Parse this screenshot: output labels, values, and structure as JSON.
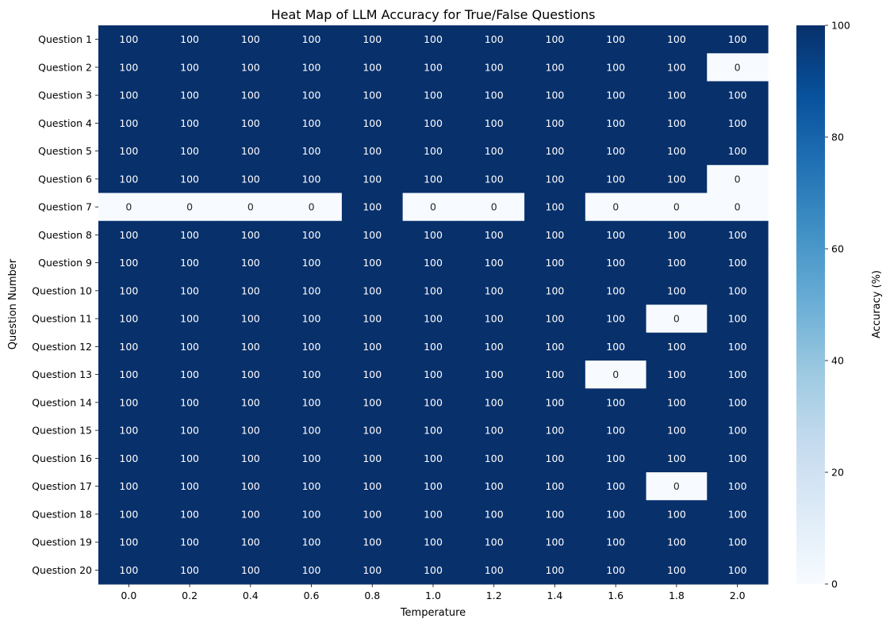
{
  "chart_data": {
    "type": "heatmap",
    "title": "Heat Map of LLM Accuracy for True/False Questions",
    "xlabel": "Temperature",
    "ylabel": "Question Number",
    "x": [
      "0.0",
      "0.2",
      "0.4",
      "0.6",
      "0.8",
      "1.0",
      "1.2",
      "1.4",
      "1.6",
      "1.8",
      "2.0"
    ],
    "y": [
      "Question 1",
      "Question 2",
      "Question 3",
      "Question 4",
      "Question 5",
      "Question 6",
      "Question 7",
      "Question 8",
      "Question 9",
      "Question 10",
      "Question 11",
      "Question 12",
      "Question 13",
      "Question 14",
      "Question 15",
      "Question 16",
      "Question 17",
      "Question 18",
      "Question 19",
      "Question 20"
    ],
    "values": [
      [
        100,
        100,
        100,
        100,
        100,
        100,
        100,
        100,
        100,
        100,
        100
      ],
      [
        100,
        100,
        100,
        100,
        100,
        100,
        100,
        100,
        100,
        100,
        0
      ],
      [
        100,
        100,
        100,
        100,
        100,
        100,
        100,
        100,
        100,
        100,
        100
      ],
      [
        100,
        100,
        100,
        100,
        100,
        100,
        100,
        100,
        100,
        100,
        100
      ],
      [
        100,
        100,
        100,
        100,
        100,
        100,
        100,
        100,
        100,
        100,
        100
      ],
      [
        100,
        100,
        100,
        100,
        100,
        100,
        100,
        100,
        100,
        100,
        0
      ],
      [
        0,
        0,
        0,
        0,
        100,
        0,
        0,
        100,
        0,
        0,
        0
      ],
      [
        100,
        100,
        100,
        100,
        100,
        100,
        100,
        100,
        100,
        100,
        100
      ],
      [
        100,
        100,
        100,
        100,
        100,
        100,
        100,
        100,
        100,
        100,
        100
      ],
      [
        100,
        100,
        100,
        100,
        100,
        100,
        100,
        100,
        100,
        100,
        100
      ],
      [
        100,
        100,
        100,
        100,
        100,
        100,
        100,
        100,
        100,
        0,
        100
      ],
      [
        100,
        100,
        100,
        100,
        100,
        100,
        100,
        100,
        100,
        100,
        100
      ],
      [
        100,
        100,
        100,
        100,
        100,
        100,
        100,
        100,
        0,
        100,
        100
      ],
      [
        100,
        100,
        100,
        100,
        100,
        100,
        100,
        100,
        100,
        100,
        100
      ],
      [
        100,
        100,
        100,
        100,
        100,
        100,
        100,
        100,
        100,
        100,
        100
      ],
      [
        100,
        100,
        100,
        100,
        100,
        100,
        100,
        100,
        100,
        100,
        100
      ],
      [
        100,
        100,
        100,
        100,
        100,
        100,
        100,
        100,
        100,
        0,
        100
      ],
      [
        100,
        100,
        100,
        100,
        100,
        100,
        100,
        100,
        100,
        100,
        100
      ],
      [
        100,
        100,
        100,
        100,
        100,
        100,
        100,
        100,
        100,
        100,
        100
      ],
      [
        100,
        100,
        100,
        100,
        100,
        100,
        100,
        100,
        100,
        100,
        100
      ]
    ],
    "colorbar": {
      "label": "Accuracy (%)",
      "range": [
        0,
        100
      ],
      "ticks": [
        "0",
        "20",
        "40",
        "60",
        "80",
        "100"
      ],
      "colormap": "Blues",
      "color_low": "#f7fbff",
      "color_high": "#08306b"
    },
    "cell_text_dark": "#262626",
    "cell_text_light": "#ffffff"
  }
}
